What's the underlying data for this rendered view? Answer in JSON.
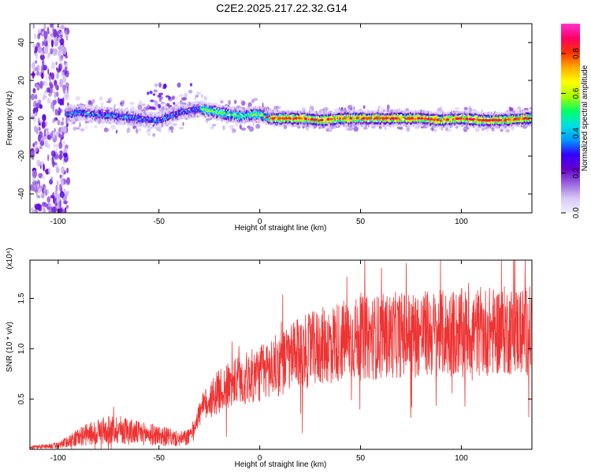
{
  "title": "C2E2.2025.217.22.32.G14",
  "colors": {
    "line": "#ee3333",
    "axis": "#000000",
    "colorbar_stops": [
      "#f0f0ff",
      "#d8c8f4",
      "#9966e0",
      "#6600cc",
      "#3300ff",
      "#0099ff",
      "#00e0e0",
      "#00ff66",
      "#aaff00",
      "#ffff00",
      "#ffaa00",
      "#ff3300",
      "#ff0066",
      "#ff33cc"
    ]
  },
  "chart_data": [
    {
      "type": "heatmap",
      "title": "C2E2.2025.217.22.32.G14",
      "xlabel": "Height of straight line (km)",
      "ylabel": "Frequency (Hz)",
      "xlim": [
        -114,
        135
      ],
      "ylim": [
        -50,
        50
      ],
      "x_ticks": [
        -100,
        -50,
        0,
        50,
        100
      ],
      "x_tick_labels": [
        "-100",
        "-50",
        "0",
        "50",
        "100"
      ],
      "y_ticks": [
        -40,
        -20,
        0,
        20,
        40
      ],
      "y_tick_labels": [
        "-40",
        "-20",
        "0",
        "20",
        "40"
      ],
      "colorbar": {
        "label": "Normalized spectral amplitude",
        "range": [
          0,
          0.95
        ],
        "ticks": [
          0.0,
          0.2,
          0.4,
          0.6,
          0.8
        ],
        "tick_labels": [
          "0.0",
          "0.2",
          "0.4",
          "0.6",
          "0.8"
        ]
      },
      "ridge": {
        "x": [
          -96,
          -90,
          -80,
          -70,
          -60,
          -55,
          -50,
          -45,
          -40,
          -35,
          -30,
          -25,
          -20,
          -15,
          -10,
          -5,
          0,
          5,
          10,
          20,
          30,
          40,
          50,
          60,
          70,
          80,
          90,
          100,
          110,
          120,
          130,
          135
        ],
        "y": [
          2,
          3,
          2,
          1,
          0,
          -1,
          -1,
          1,
          3,
          4,
          5,
          4,
          3,
          2,
          1,
          2,
          2,
          0,
          0,
          0,
          -1,
          0,
          0,
          0,
          0,
          0,
          -1,
          0,
          -1,
          -1,
          0,
          0
        ]
      },
      "grid": false
    },
    {
      "type": "line",
      "xlabel": "Height of straight line (km)",
      "ylabel": "SNR (10 * v/v)",
      "y_scale_note": "(x10⁴)",
      "xlim": [
        -114,
        135
      ],
      "ylim": [
        0,
        1.88
      ],
      "x_ticks": [
        -100,
        -50,
        0,
        50,
        100
      ],
      "x_tick_labels": [
        "-100",
        "-50",
        "0",
        "50",
        "100"
      ],
      "y_ticks": [
        0.5,
        1.0,
        1.5
      ],
      "y_tick_labels": [
        "0.5",
        "1.0",
        "1.5"
      ],
      "envelope": {
        "x": [
          -114,
          -100,
          -90,
          -80,
          -70,
          -60,
          -50,
          -40,
          -35,
          -30,
          -25,
          -20,
          -10,
          0,
          10,
          20,
          30,
          40,
          50,
          60,
          70,
          80,
          90,
          100,
          110,
          120,
          135
        ],
        "y": [
          0.02,
          0.04,
          0.12,
          0.18,
          0.2,
          0.16,
          0.14,
          0.1,
          0.12,
          0.35,
          0.5,
          0.58,
          0.68,
          0.75,
          0.85,
          0.95,
          1.02,
          1.08,
          1.1,
          1.12,
          1.14,
          1.15,
          1.15,
          1.16,
          1.17,
          1.18,
          1.18
        ]
      },
      "grid": false
    }
  ]
}
